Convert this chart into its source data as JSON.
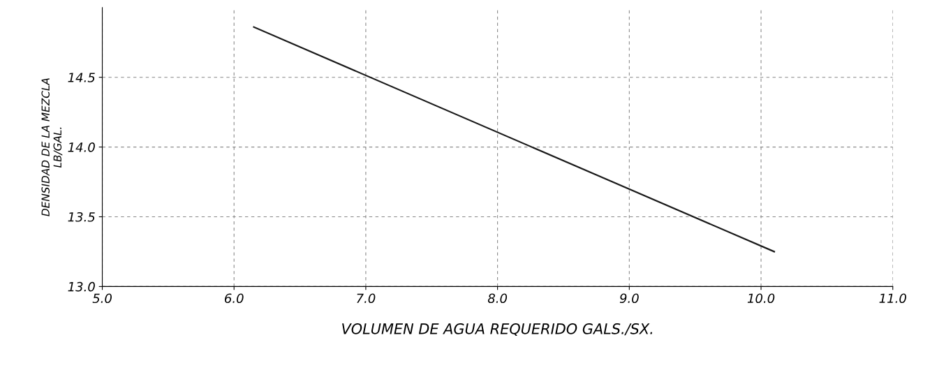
{
  "chart_data": {
    "type": "line",
    "xlabel": "VOLUMEN DE AGUA REQUERIDO GALS./SX.",
    "ylabel": "DENSIDAD DE LA MEZCLA\nLB/GAL.",
    "x": [
      6.15,
      10.1
    ],
    "series": [
      {
        "color": "#1a1a1a",
        "values": [
          14.86,
          13.25
        ]
      }
    ],
    "xlim": [
      5,
      11
    ],
    "xticks": [
      {
        "value": 5,
        "label": "5.0"
      },
      {
        "value": 6,
        "label": "6.0"
      },
      {
        "value": 7,
        "label": "7.0"
      },
      {
        "value": 8,
        "label": "8.0"
      },
      {
        "value": 9,
        "label": "9.0"
      },
      {
        "value": 10,
        "label": "10.0"
      },
      {
        "value": 11,
        "label": "11.0"
      }
    ],
    "ylim": [
      13,
      15
    ],
    "yticks": [
      {
        "value": 13,
        "label": "13.0"
      },
      {
        "value": 13.5,
        "label": "13.5"
      },
      {
        "value": 14,
        "label": "14.0"
      },
      {
        "value": 14.5,
        "label": "14.5"
      }
    ],
    "grid": true,
    "legend": false,
    "marker": "none",
    "line_style": "solid"
  }
}
